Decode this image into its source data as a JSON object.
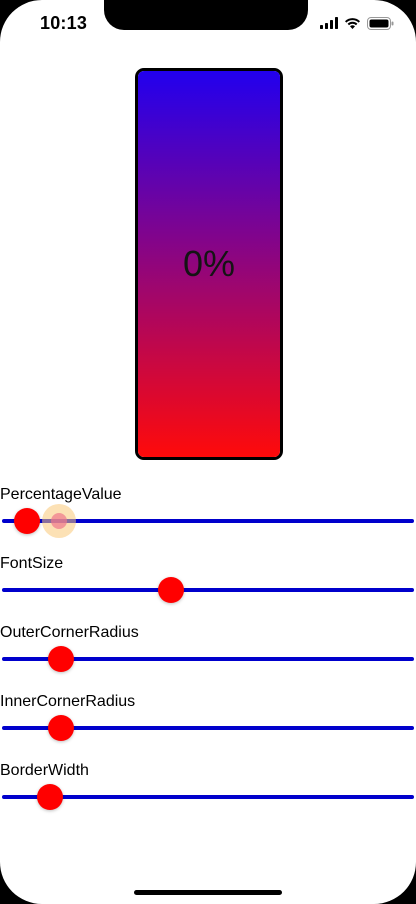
{
  "status_bar": {
    "time": "10:13",
    "icons": [
      "cellular-signal-icon",
      "wifi-icon",
      "battery-icon"
    ]
  },
  "battery_view": {
    "label": "0%",
    "gradient_top_color": "#2200ee",
    "gradient_bottom_color": "#ff0a0a",
    "border_color": "#000000"
  },
  "colors": {
    "track": "#0000cc",
    "thumb": "#ff0000"
  },
  "controls": [
    {
      "label": "PercentageValue",
      "value_fraction": 0.03
    },
    {
      "label": "FontSize",
      "value_fraction": 0.405
    },
    {
      "label": "OuterCornerRadius",
      "value_fraction": 0.12
    },
    {
      "label": "InnerCornerRadius",
      "value_fraction": 0.12
    },
    {
      "label": "BorderWidth",
      "value_fraction": 0.09
    }
  ],
  "touch_indicator": {
    "control_index": 0,
    "value_fraction": 0.115
  }
}
